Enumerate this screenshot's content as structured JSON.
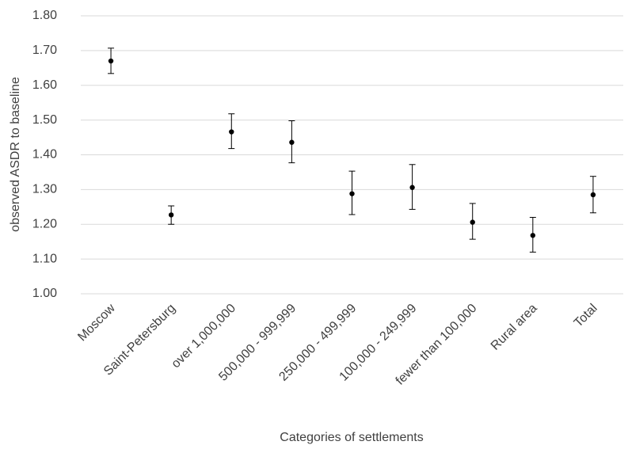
{
  "chart_data": {
    "type": "errorbar",
    "y_label": "observed ASDR to baseline",
    "x_label": "Categories of settlements",
    "categories": [
      "Moscow",
      "Saint-Petersburg",
      "over 1,000,000",
      "500,000 - 999,999",
      "250,000 - 499,999",
      "100,000 - 249,999",
      "fewer than 100,000",
      "Rural area",
      "Total"
    ],
    "series": [
      {
        "color": "#000000",
        "values": [
          1.67,
          1.227,
          1.466,
          1.436,
          1.288,
          1.306,
          1.206,
          1.168,
          1.285
        ],
        "lower": [
          1.634,
          1.2,
          1.418,
          1.377,
          1.228,
          1.243,
          1.157,
          1.12,
          1.233
        ],
        "upper": [
          1.707,
          1.253,
          1.518,
          1.498,
          1.353,
          1.372,
          1.26,
          1.22,
          1.338
        ]
      }
    ],
    "ylim": [
      1.0,
      1.8
    ],
    "yticks": [
      {
        "value": 1.0,
        "label": "1.00"
      },
      {
        "value": 1.1,
        "label": "1.10"
      },
      {
        "value": 1.2,
        "label": "1.20"
      },
      {
        "value": 1.3,
        "label": "1.30"
      },
      {
        "value": 1.4,
        "label": "1.40"
      },
      {
        "value": 1.5,
        "label": "1.50"
      },
      {
        "value": 1.6,
        "label": "1.60"
      },
      {
        "value": 1.7,
        "label": "1.70"
      },
      {
        "value": 1.8,
        "label": "1.80"
      }
    ],
    "grid": true
  }
}
